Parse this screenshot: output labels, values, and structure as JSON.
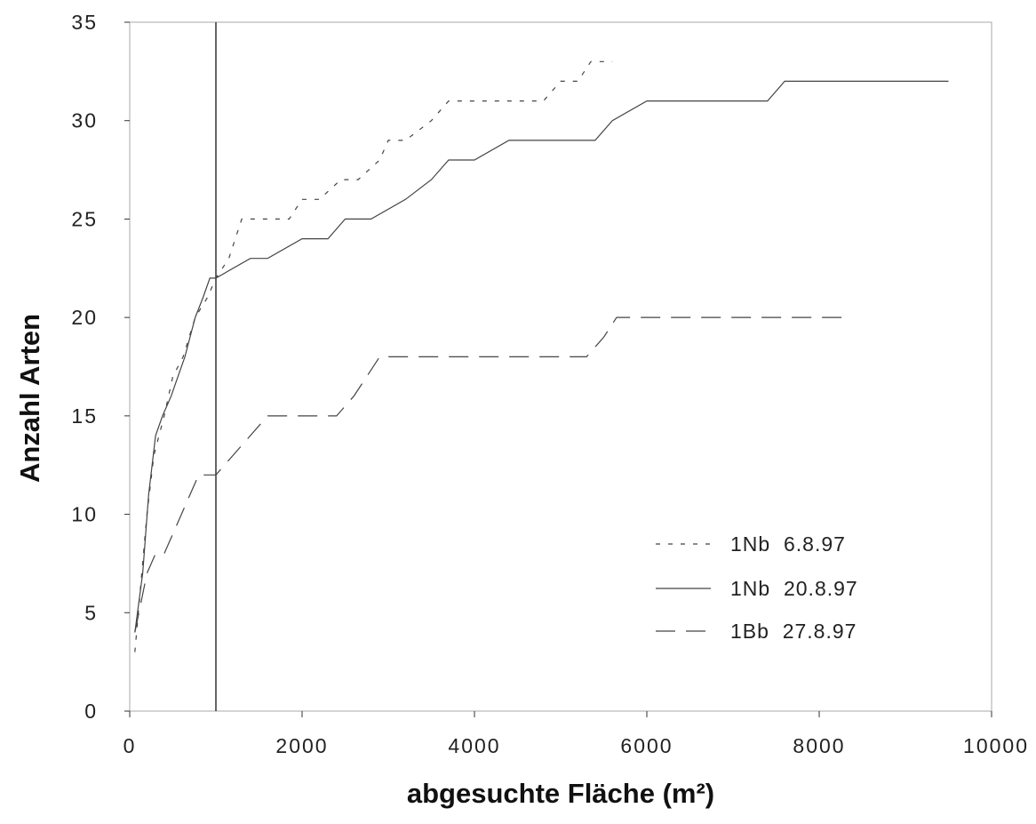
{
  "chart_data": {
    "type": "line",
    "xlabel": "abgesuchte Fläche (m²)",
    "ylabel": "Anzahl Arten",
    "xlim": [
      0,
      10000
    ],
    "ylim": [
      0,
      35
    ],
    "xticks": [
      "0",
      "2000",
      "4000",
      "6000",
      "8000",
      "10000"
    ],
    "yticks": [
      "0",
      "5",
      "10",
      "15",
      "20",
      "25",
      "30",
      "35"
    ],
    "grid": false,
    "legend_position": "lower-right",
    "reference_line_x": 1000,
    "series": [
      {
        "name": "1Nb  6.8.97",
        "style": "dotted",
        "x": [
          60,
          120,
          200,
          280,
          400,
          500,
          620,
          760,
          900,
          1000,
          1150,
          1300,
          1550,
          1850,
          2000,
          2200,
          2450,
          2650,
          2900,
          3000,
          3200,
          3500,
          3700,
          4000,
          4500,
          4800,
          5000,
          5200,
          5350,
          5600
        ],
        "y": [
          3,
          6,
          10,
          13,
          15,
          17,
          18,
          20,
          21,
          22,
          23,
          25,
          25,
          25,
          26,
          26,
          27,
          27,
          28,
          29,
          29,
          30,
          31,
          31,
          31,
          31,
          32,
          32,
          33,
          33
        ]
      },
      {
        "name": "1Nb  20.8.97",
        "style": "solid",
        "x": [
          60,
          150,
          220,
          300,
          380,
          480,
          560,
          640,
          760,
          850,
          930,
          1000,
          1400,
          1600,
          2000,
          2300,
          2500,
          2800,
          3200,
          3500,
          3700,
          4000,
          4400,
          4800,
          5400,
          5600,
          6000,
          6500,
          7000,
          7400,
          7600,
          8200,
          9500
        ],
        "y": [
          4,
          7,
          11,
          14,
          15,
          16,
          17,
          18,
          20,
          21,
          22,
          22,
          23,
          23,
          24,
          24,
          25,
          25,
          26,
          27,
          28,
          28,
          29,
          29,
          29,
          30,
          31,
          31,
          31,
          31,
          32,
          32,
          32
        ]
      },
      {
        "name": "1Bb  27.8.97",
        "style": "dashed",
        "x": [
          60,
          200,
          300,
          400,
          500,
          600,
          700,
          800,
          1000,
          1200,
          1400,
          1600,
          2000,
          2400,
          2600,
          2750,
          2900,
          3500,
          4500,
          5300,
          5500,
          5650,
          6500,
          7500,
          8300
        ],
        "y": [
          4,
          7,
          8,
          8,
          9,
          10,
          11,
          12,
          12,
          13,
          14,
          15,
          15,
          15,
          16,
          17,
          18,
          18,
          18,
          18,
          19,
          20,
          20,
          20,
          20
        ]
      }
    ]
  }
}
